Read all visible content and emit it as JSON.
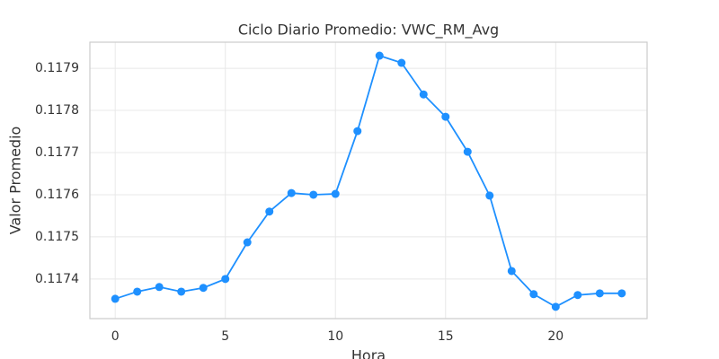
{
  "chart_data": {
    "type": "line",
    "title": "Ciclo Diario Promedio: VWC_RM_Avg",
    "x_label": "Hora",
    "y_label": "Valor Promedio",
    "x": [
      0,
      1,
      2,
      3,
      4,
      5,
      6,
      7,
      8,
      9,
      10,
      11,
      12,
      13,
      14,
      15,
      16,
      17,
      18,
      19,
      20,
      21,
      22,
      23
    ],
    "series": [
      {
        "color": "#1e90ff",
        "values": [
          0.117353,
          0.11737,
          0.117381,
          0.11737,
          0.117379,
          0.1174,
          0.117487,
          0.11756,
          0.117604,
          0.1176,
          0.117602,
          0.117751,
          0.11793,
          0.117913,
          0.117838,
          0.117785,
          0.117702,
          0.117598,
          0.117419,
          0.117364,
          0.117334,
          0.117362,
          0.117366,
          0.117366
        ]
      }
    ],
    "xlim": [
      -1.15,
      24.15
    ],
    "xticks": [
      0,
      5,
      10,
      15,
      20
    ],
    "ylim": [
      0.117306,
      0.117962
    ],
    "yticks": [
      0.1174,
      0.1175,
      0.1176,
      0.1177,
      0.1178,
      0.1179
    ],
    "grid": true
  }
}
